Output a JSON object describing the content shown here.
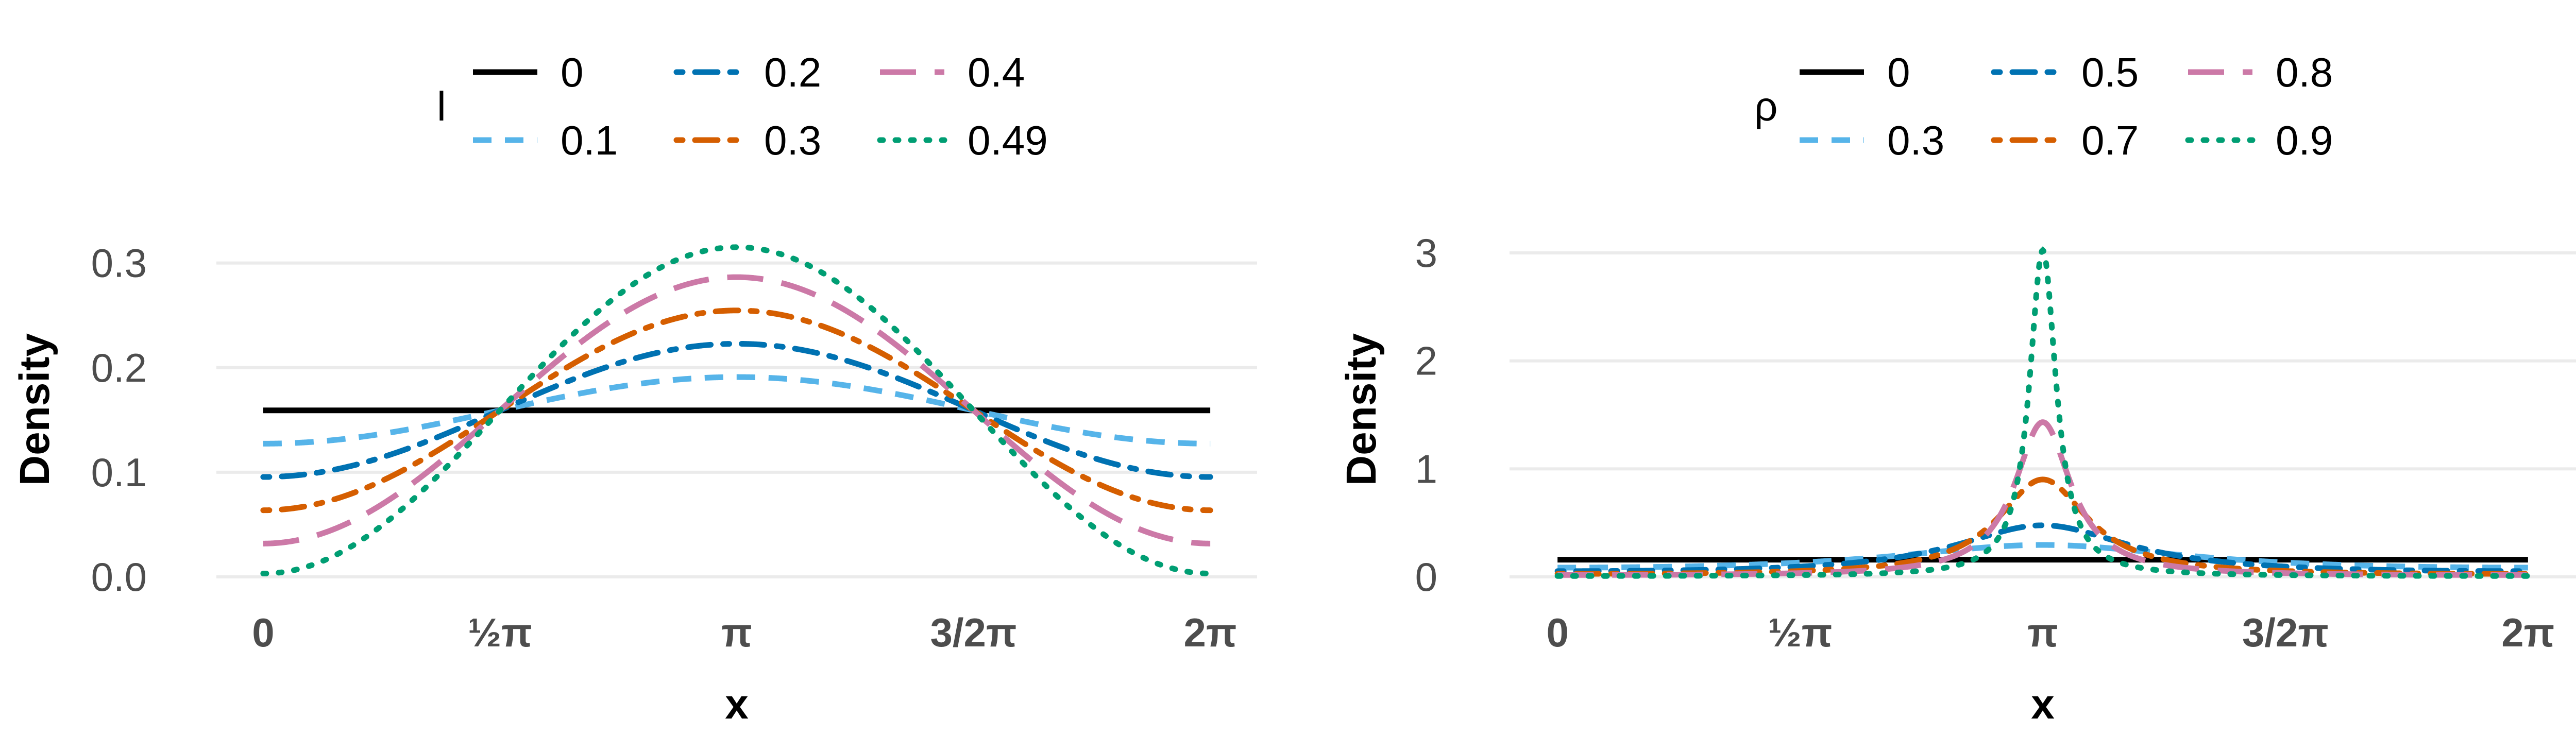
{
  "chart_data": [
    {
      "type": "line",
      "title": "",
      "xlabel": "x",
      "ylabel": "Density",
      "xlim": [
        0,
        6.283185
      ],
      "ylim": [
        0,
        0.32
      ],
      "x_ticks": [
        {
          "value": 0,
          "label": "0"
        },
        {
          "value": 1.570796,
          "label": "½π"
        },
        {
          "value": 3.141593,
          "label": "π"
        },
        {
          "value": 4.712389,
          "label": "3/2π"
        },
        {
          "value": 6.283185,
          "label": "2π"
        }
      ],
      "y_ticks": [
        {
          "value": 0.0,
          "label": "0.0"
        },
        {
          "value": 0.1,
          "label": "0.1"
        },
        {
          "value": 0.2,
          "label": "0.2"
        },
        {
          "value": 0.3,
          "label": "0.3"
        }
      ],
      "grid": true,
      "legend": {
        "title": "l",
        "position": "top",
        "columns": 3
      },
      "distribution": "cardioid",
      "series": [
        {
          "name": "0",
          "param": 0,
          "color": "#000000",
          "dash": "solid"
        },
        {
          "name": "0.1",
          "param": 0.1,
          "color": "#56B4E9",
          "dash": "dashed"
        },
        {
          "name": "0.2",
          "param": 0.2,
          "color": "#0072B2",
          "dash": "dotdash"
        },
        {
          "name": "0.3",
          "param": 0.3,
          "color": "#D55E00",
          "dash": "dotdash"
        },
        {
          "name": "0.4",
          "param": 0.4,
          "color": "#CC79A7",
          "dash": "longdash"
        },
        {
          "name": "0.49",
          "param": 0.49,
          "color": "#009E73",
          "dash": "dotted"
        }
      ]
    },
    {
      "type": "line",
      "title": "",
      "xlabel": "x",
      "ylabel": "Density",
      "xlim": [
        0,
        6.283185
      ],
      "ylim": [
        0,
        3.1
      ],
      "x_ticks": [
        {
          "value": 0,
          "label": "0"
        },
        {
          "value": 1.570796,
          "label": "½π"
        },
        {
          "value": 3.141593,
          "label": "π"
        },
        {
          "value": 4.712389,
          "label": "3/2π"
        },
        {
          "value": 6.283185,
          "label": "2π"
        }
      ],
      "y_ticks": [
        {
          "value": 0,
          "label": "0"
        },
        {
          "value": 1,
          "label": "1"
        },
        {
          "value": 2,
          "label": "2"
        },
        {
          "value": 3,
          "label": "3"
        }
      ],
      "grid": true,
      "legend": {
        "title": "ρ",
        "position": "top",
        "columns": 3
      },
      "distribution": "wrapped-cauchy",
      "series": [
        {
          "name": "0",
          "param": 0,
          "color": "#000000",
          "dash": "solid"
        },
        {
          "name": "0.3",
          "param": 0.3,
          "color": "#56B4E9",
          "dash": "dashed"
        },
        {
          "name": "0.5",
          "param": 0.5,
          "color": "#0072B2",
          "dash": "dotdash"
        },
        {
          "name": "0.7",
          "param": 0.7,
          "color": "#D55E00",
          "dash": "dotdash"
        },
        {
          "name": "0.8",
          "param": 0.8,
          "color": "#CC79A7",
          "dash": "longdash"
        },
        {
          "name": "0.9",
          "param": 0.9,
          "color": "#009E73",
          "dash": "dotted"
        }
      ]
    }
  ]
}
